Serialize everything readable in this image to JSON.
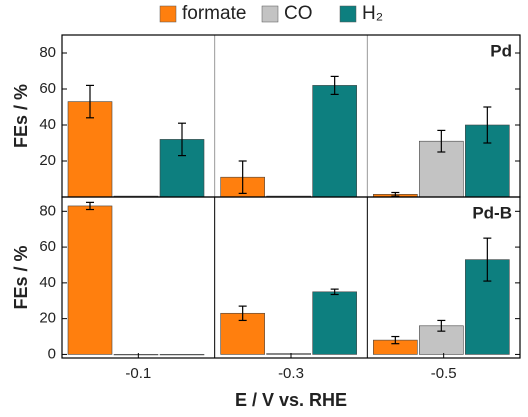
{
  "chart_data": [
    {
      "type": "bar",
      "panel_label": "Pd",
      "y_label": "FEs / %",
      "ylim": [
        0,
        90
      ],
      "yticks": [
        20,
        40,
        60,
        80
      ],
      "series": [
        {
          "name": "formate",
          "color": "#ff7f0e",
          "values": [
            53,
            11,
            1.5
          ],
          "errors": [
            9,
            9,
            1
          ]
        },
        {
          "name": "CO",
          "color": "#c3c3c3",
          "values": [
            0.5,
            0.5,
            31
          ],
          "errors": [
            0,
            0,
            6
          ]
        },
        {
          "name": "H₂",
          "color": "#0d7f7f",
          "values": [
            32,
            62,
            40
          ],
          "errors": [
            9,
            5,
            10
          ]
        }
      ]
    },
    {
      "type": "bar",
      "panel_label": "Pd-B",
      "y_label": "FEs / %",
      "x_label": "E / V vs. RHE",
      "categories": [
        "-0.1",
        "-0.3",
        "-0.5"
      ],
      "ylim": [
        -2,
        88
      ],
      "yticks": [
        0,
        20,
        40,
        60,
        80
      ],
      "series": [
        {
          "color": "#ff7f0e",
          "values": [
            83,
            23,
            8
          ],
          "errors": [
            2,
            4,
            2
          ]
        },
        {
          "color": "#c3c3c3",
          "values": [
            0,
            0.5,
            16
          ],
          "errors": [
            0,
            0,
            3
          ]
        },
        {
          "color": "#0d7f7f",
          "values": [
            0,
            35,
            53
          ],
          "errors": [
            0,
            1.5,
            12
          ]
        }
      ]
    }
  ]
}
